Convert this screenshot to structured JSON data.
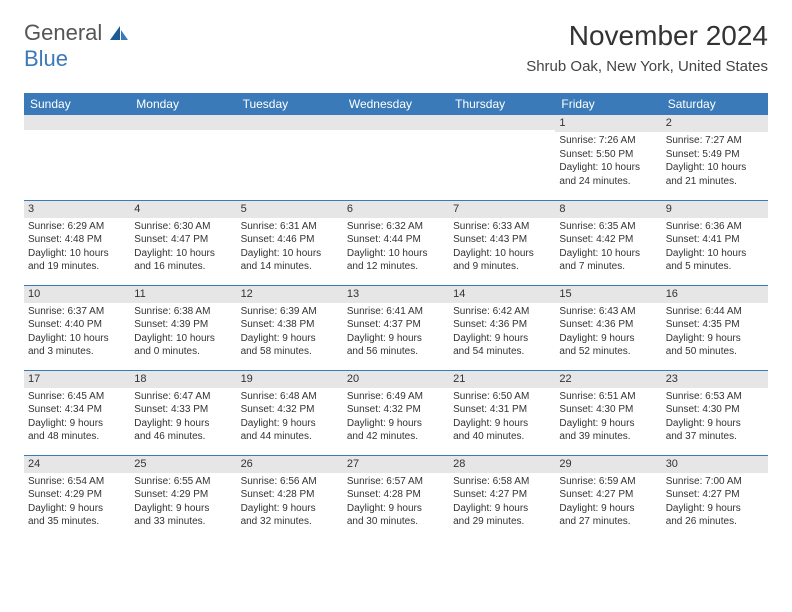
{
  "logo": {
    "general": "General",
    "blue": "Blue"
  },
  "header": {
    "month_title": "November 2024",
    "location": "Shrub Oak, New York, United States"
  },
  "colors": {
    "header_bg": "#3a7ab8",
    "header_text": "#ffffff",
    "daynum_bg": "#e6e6e6",
    "border": "#3a7ab8",
    "page_bg": "#ffffff"
  },
  "day_names": [
    "Sunday",
    "Monday",
    "Tuesday",
    "Wednesday",
    "Thursday",
    "Friday",
    "Saturday"
  ],
  "weeks": [
    [
      {
        "n": "",
        "sr": "",
        "ss": "",
        "d1": "",
        "d2": ""
      },
      {
        "n": "",
        "sr": "",
        "ss": "",
        "d1": "",
        "d2": ""
      },
      {
        "n": "",
        "sr": "",
        "ss": "",
        "d1": "",
        "d2": ""
      },
      {
        "n": "",
        "sr": "",
        "ss": "",
        "d1": "",
        "d2": ""
      },
      {
        "n": "",
        "sr": "",
        "ss": "",
        "d1": "",
        "d2": ""
      },
      {
        "n": "1",
        "sr": "Sunrise: 7:26 AM",
        "ss": "Sunset: 5:50 PM",
        "d1": "Daylight: 10 hours",
        "d2": "and 24 minutes."
      },
      {
        "n": "2",
        "sr": "Sunrise: 7:27 AM",
        "ss": "Sunset: 5:49 PM",
        "d1": "Daylight: 10 hours",
        "d2": "and 21 minutes."
      }
    ],
    [
      {
        "n": "3",
        "sr": "Sunrise: 6:29 AM",
        "ss": "Sunset: 4:48 PM",
        "d1": "Daylight: 10 hours",
        "d2": "and 19 minutes."
      },
      {
        "n": "4",
        "sr": "Sunrise: 6:30 AM",
        "ss": "Sunset: 4:47 PM",
        "d1": "Daylight: 10 hours",
        "d2": "and 16 minutes."
      },
      {
        "n": "5",
        "sr": "Sunrise: 6:31 AM",
        "ss": "Sunset: 4:46 PM",
        "d1": "Daylight: 10 hours",
        "d2": "and 14 minutes."
      },
      {
        "n": "6",
        "sr": "Sunrise: 6:32 AM",
        "ss": "Sunset: 4:44 PM",
        "d1": "Daylight: 10 hours",
        "d2": "and 12 minutes."
      },
      {
        "n": "7",
        "sr": "Sunrise: 6:33 AM",
        "ss": "Sunset: 4:43 PM",
        "d1": "Daylight: 10 hours",
        "d2": "and 9 minutes."
      },
      {
        "n": "8",
        "sr": "Sunrise: 6:35 AM",
        "ss": "Sunset: 4:42 PM",
        "d1": "Daylight: 10 hours",
        "d2": "and 7 minutes."
      },
      {
        "n": "9",
        "sr": "Sunrise: 6:36 AM",
        "ss": "Sunset: 4:41 PM",
        "d1": "Daylight: 10 hours",
        "d2": "and 5 minutes."
      }
    ],
    [
      {
        "n": "10",
        "sr": "Sunrise: 6:37 AM",
        "ss": "Sunset: 4:40 PM",
        "d1": "Daylight: 10 hours",
        "d2": "and 3 minutes."
      },
      {
        "n": "11",
        "sr": "Sunrise: 6:38 AM",
        "ss": "Sunset: 4:39 PM",
        "d1": "Daylight: 10 hours",
        "d2": "and 0 minutes."
      },
      {
        "n": "12",
        "sr": "Sunrise: 6:39 AM",
        "ss": "Sunset: 4:38 PM",
        "d1": "Daylight: 9 hours",
        "d2": "and 58 minutes."
      },
      {
        "n": "13",
        "sr": "Sunrise: 6:41 AM",
        "ss": "Sunset: 4:37 PM",
        "d1": "Daylight: 9 hours",
        "d2": "and 56 minutes."
      },
      {
        "n": "14",
        "sr": "Sunrise: 6:42 AM",
        "ss": "Sunset: 4:36 PM",
        "d1": "Daylight: 9 hours",
        "d2": "and 54 minutes."
      },
      {
        "n": "15",
        "sr": "Sunrise: 6:43 AM",
        "ss": "Sunset: 4:36 PM",
        "d1": "Daylight: 9 hours",
        "d2": "and 52 minutes."
      },
      {
        "n": "16",
        "sr": "Sunrise: 6:44 AM",
        "ss": "Sunset: 4:35 PM",
        "d1": "Daylight: 9 hours",
        "d2": "and 50 minutes."
      }
    ],
    [
      {
        "n": "17",
        "sr": "Sunrise: 6:45 AM",
        "ss": "Sunset: 4:34 PM",
        "d1": "Daylight: 9 hours",
        "d2": "and 48 minutes."
      },
      {
        "n": "18",
        "sr": "Sunrise: 6:47 AM",
        "ss": "Sunset: 4:33 PM",
        "d1": "Daylight: 9 hours",
        "d2": "and 46 minutes."
      },
      {
        "n": "19",
        "sr": "Sunrise: 6:48 AM",
        "ss": "Sunset: 4:32 PM",
        "d1": "Daylight: 9 hours",
        "d2": "and 44 minutes."
      },
      {
        "n": "20",
        "sr": "Sunrise: 6:49 AM",
        "ss": "Sunset: 4:32 PM",
        "d1": "Daylight: 9 hours",
        "d2": "and 42 minutes."
      },
      {
        "n": "21",
        "sr": "Sunrise: 6:50 AM",
        "ss": "Sunset: 4:31 PM",
        "d1": "Daylight: 9 hours",
        "d2": "and 40 minutes."
      },
      {
        "n": "22",
        "sr": "Sunrise: 6:51 AM",
        "ss": "Sunset: 4:30 PM",
        "d1": "Daylight: 9 hours",
        "d2": "and 39 minutes."
      },
      {
        "n": "23",
        "sr": "Sunrise: 6:53 AM",
        "ss": "Sunset: 4:30 PM",
        "d1": "Daylight: 9 hours",
        "d2": "and 37 minutes."
      }
    ],
    [
      {
        "n": "24",
        "sr": "Sunrise: 6:54 AM",
        "ss": "Sunset: 4:29 PM",
        "d1": "Daylight: 9 hours",
        "d2": "and 35 minutes."
      },
      {
        "n": "25",
        "sr": "Sunrise: 6:55 AM",
        "ss": "Sunset: 4:29 PM",
        "d1": "Daylight: 9 hours",
        "d2": "and 33 minutes."
      },
      {
        "n": "26",
        "sr": "Sunrise: 6:56 AM",
        "ss": "Sunset: 4:28 PM",
        "d1": "Daylight: 9 hours",
        "d2": "and 32 minutes."
      },
      {
        "n": "27",
        "sr": "Sunrise: 6:57 AM",
        "ss": "Sunset: 4:28 PM",
        "d1": "Daylight: 9 hours",
        "d2": "and 30 minutes."
      },
      {
        "n": "28",
        "sr": "Sunrise: 6:58 AM",
        "ss": "Sunset: 4:27 PM",
        "d1": "Daylight: 9 hours",
        "d2": "and 29 minutes."
      },
      {
        "n": "29",
        "sr": "Sunrise: 6:59 AM",
        "ss": "Sunset: 4:27 PM",
        "d1": "Daylight: 9 hours",
        "d2": "and 27 minutes."
      },
      {
        "n": "30",
        "sr": "Sunrise: 7:00 AM",
        "ss": "Sunset: 4:27 PM",
        "d1": "Daylight: 9 hours",
        "d2": "and 26 minutes."
      }
    ]
  ]
}
